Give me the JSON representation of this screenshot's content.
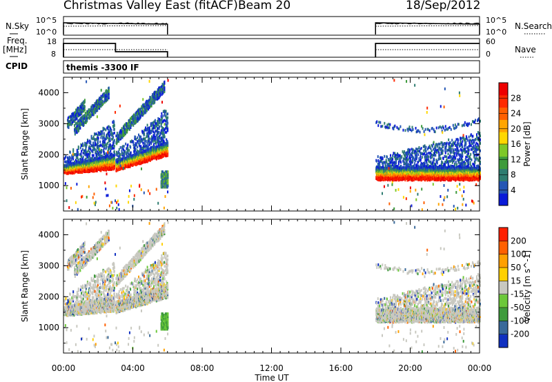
{
  "header": {
    "title": "Christmas Valley East (fitACF)",
    "beam": "Beam 20",
    "date": "18/Sep/2012"
  },
  "param_labels": {
    "nsky": "N.Sky",
    "nsky_ticks": [
      "10^5",
      "10^0"
    ],
    "nsearch": "N.Search",
    "nsearch_ticks": [
      "10^5",
      "10^0"
    ],
    "freq_label_line1": "Freq.",
    "freq_label_line2": "[MHz]",
    "freq_ticks": [
      "18",
      "8"
    ],
    "nave": "Nave",
    "nave_ticks": [
      "60",
      "0"
    ],
    "cpid": "CPID",
    "cpid_text": "themis -3300 IF"
  },
  "chart_data": {
    "type": "heatmap",
    "x": {
      "label": "Time UT",
      "range_hours": [
        0,
        24
      ],
      "ticks": [
        "00:00",
        "04:00",
        "08:00",
        "12:00",
        "16:00",
        "20:00",
        "00:00"
      ],
      "tick_hours": [
        0,
        4,
        8,
        12,
        16,
        20,
        24
      ]
    },
    "data_windows_hours": [
      [
        0,
        6
      ],
      [
        18,
        24
      ]
    ],
    "panels": [
      {
        "name": "power",
        "ylabel": "Slant Range [km]",
        "yrange_km": [
          180,
          4500
        ],
        "yticks": [
          1000,
          2000,
          3000,
          4000
        ],
        "colorbar_label": "Power [dB]",
        "colorbar_ticks": [
          "28",
          "24",
          "20",
          "16",
          "12",
          "8",
          "4"
        ],
        "colorbar_colors": [
          "#0a1ad8",
          "#2456b4",
          "#2e7c70",
          "#3e9b3c",
          "#7ec828",
          "#ffd700",
          "#ffa500",
          "#ff6000",
          "#ff2a00",
          "#ee0000"
        ]
      },
      {
        "name": "velocity",
        "ylabel": "Slant Range [km]",
        "yrange_km": [
          180,
          4500
        ],
        "yticks": [
          1000,
          2000,
          3000,
          4000
        ],
        "colorbar_label": "Velocity [m s^-1]",
        "colorbar_ticks": [
          "200",
          "100",
          "50",
          "15",
          "-15",
          "-50",
          "-100",
          "-200"
        ],
        "colorbar_colors": [
          "#1030c0",
          "#3a6a9a",
          "#3e9b3c",
          "#6cc83a",
          "#c8c8c0",
          "#ffd000",
          "#ffa000",
          "#ff6000",
          "#ff2000"
        ]
      }
    ],
    "bands": {
      "power_day1": [
        {
          "t0": 0.0,
          "t1": 2.9,
          "lo": 1400,
          "hi": 1650,
          "lo_end": 1550,
          "hi_end": 2000,
          "core": "#ff2a00"
        },
        {
          "t0": 3.0,
          "t1": 6.0,
          "lo": 1500,
          "hi": 1800,
          "lo_end": 2000,
          "hi_end": 2400,
          "core": "#ffa500"
        }
      ],
      "power_day2": [
        {
          "t0": 18.0,
          "t1": 24.0,
          "lo": 1200,
          "hi": 1600,
          "core": "#ff2a00"
        }
      ]
    }
  }
}
